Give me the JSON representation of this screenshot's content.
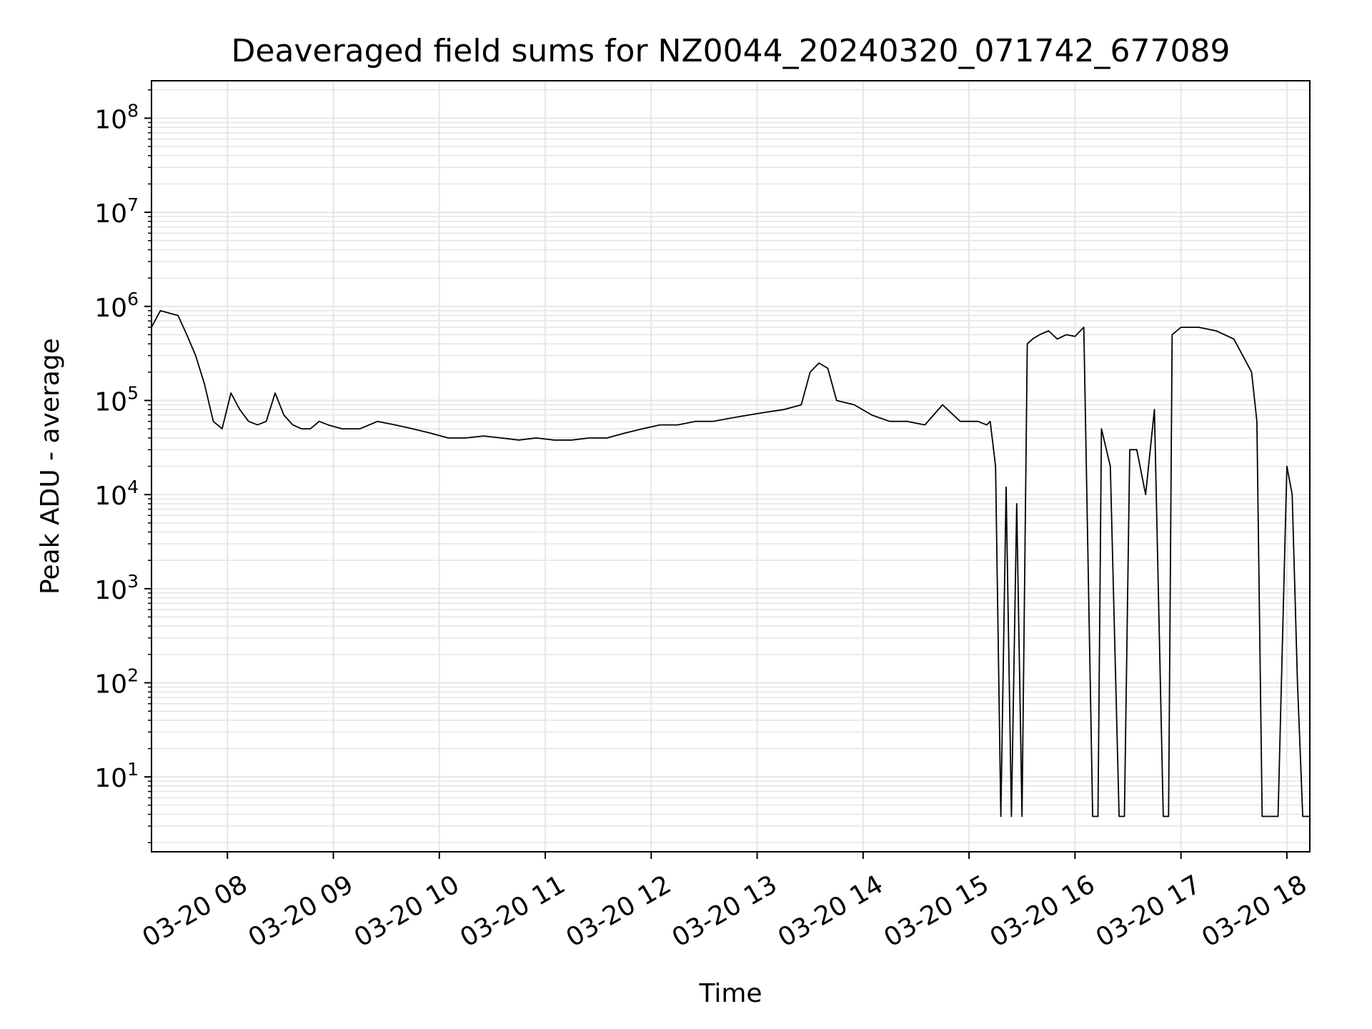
{
  "chart_data": {
    "type": "line",
    "title": "Deaveraged field sums for NZ0044_20240320_071742_677089",
    "xlabel": "Time",
    "ylabel": "Peak ADU - average",
    "x_scale": "time",
    "y_scale": "log",
    "xlim": [
      "2024-03-20T07:17",
      "2024-03-20T18:13"
    ],
    "ylim": [
      1.6,
      250000000
    ],
    "grid": true,
    "line_color": "#000000",
    "grid_color": "#e6e6e6",
    "x_ticks": [
      {
        "value": "2024-03-20T08:00",
        "label": "03-20 08"
      },
      {
        "value": "2024-03-20T09:00",
        "label": "03-20 09"
      },
      {
        "value": "2024-03-20T10:00",
        "label": "03-20 10"
      },
      {
        "value": "2024-03-20T11:00",
        "label": "03-20 11"
      },
      {
        "value": "2024-03-20T12:00",
        "label": "03-20 12"
      },
      {
        "value": "2024-03-20T13:00",
        "label": "03-20 13"
      },
      {
        "value": "2024-03-20T14:00",
        "label": "03-20 14"
      },
      {
        "value": "2024-03-20T15:00",
        "label": "03-20 15"
      },
      {
        "value": "2024-03-20T16:00",
        "label": "03-20 16"
      },
      {
        "value": "2024-03-20T17:00",
        "label": "03-20 17"
      },
      {
        "value": "2024-03-20T18:00",
        "label": "03-20 18"
      }
    ],
    "y_ticks": [
      {
        "value": 10,
        "base": "10",
        "exp": "1"
      },
      {
        "value": 100,
        "base": "10",
        "exp": "2"
      },
      {
        "value": 1000,
        "base": "10",
        "exp": "3"
      },
      {
        "value": 10000,
        "base": "10",
        "exp": "4"
      },
      {
        "value": 100000,
        "base": "10",
        "exp": "5"
      },
      {
        "value": 1000000,
        "base": "10",
        "exp": "6"
      },
      {
        "value": 10000000,
        "base": "10",
        "exp": "7"
      },
      {
        "value": 100000000,
        "base": "10",
        "exp": "8"
      }
    ],
    "series": [
      {
        "x": [
          "2024-03-20T07:17",
          "2024-03-20T07:22",
          "2024-03-20T07:27",
          "2024-03-20T07:32",
          "2024-03-20T07:37",
          "2024-03-20T07:42",
          "2024-03-20T07:47",
          "2024-03-20T07:52",
          "2024-03-20T07:57",
          "2024-03-20T08:02",
          "2024-03-20T08:07",
          "2024-03-20T08:12",
          "2024-03-20T08:17",
          "2024-03-20T08:22",
          "2024-03-20T08:27",
          "2024-03-20T08:32",
          "2024-03-20T08:37",
          "2024-03-20T08:42",
          "2024-03-20T08:47",
          "2024-03-20T08:52",
          "2024-03-20T08:57",
          "2024-03-20T09:05",
          "2024-03-20T09:15",
          "2024-03-20T09:25",
          "2024-03-20T09:35",
          "2024-03-20T09:45",
          "2024-03-20T09:55",
          "2024-03-20T10:05",
          "2024-03-20T10:15",
          "2024-03-20T10:25",
          "2024-03-20T10:35",
          "2024-03-20T10:45",
          "2024-03-20T10:55",
          "2024-03-20T11:05",
          "2024-03-20T11:15",
          "2024-03-20T11:25",
          "2024-03-20T11:35",
          "2024-03-20T11:45",
          "2024-03-20T11:55",
          "2024-03-20T12:05",
          "2024-03-20T12:15",
          "2024-03-20T12:25",
          "2024-03-20T12:35",
          "2024-03-20T12:45",
          "2024-03-20T12:55",
          "2024-03-20T13:05",
          "2024-03-20T13:15",
          "2024-03-20T13:25",
          "2024-03-20T13:30",
          "2024-03-20T13:35",
          "2024-03-20T13:40",
          "2024-03-20T13:45",
          "2024-03-20T13:55",
          "2024-03-20T14:05",
          "2024-03-20T14:15",
          "2024-03-20T14:25",
          "2024-03-20T14:35",
          "2024-03-20T14:45",
          "2024-03-20T14:55",
          "2024-03-20T15:05",
          "2024-03-20T15:10",
          "2024-03-20T15:12",
          "2024-03-20T15:15",
          "2024-03-20T15:18",
          "2024-03-20T15:21",
          "2024-03-20T15:24",
          "2024-03-20T15:27",
          "2024-03-20T15:30",
          "2024-03-20T15:33",
          "2024-03-20T15:36",
          "2024-03-20T15:40",
          "2024-03-20T15:45",
          "2024-03-20T15:50",
          "2024-03-20T15:55",
          "2024-03-20T16:00",
          "2024-03-20T16:05",
          "2024-03-20T16:10",
          "2024-03-20T16:13",
          "2024-03-20T16:15",
          "2024-03-20T16:20",
          "2024-03-20T16:25",
          "2024-03-20T16:28",
          "2024-03-20T16:31",
          "2024-03-20T16:35",
          "2024-03-20T16:40",
          "2024-03-20T16:45",
          "2024-03-20T16:50",
          "2024-03-20T16:53",
          "2024-03-20T16:55",
          "2024-03-20T17:00",
          "2024-03-20T17:10",
          "2024-03-20T17:20",
          "2024-03-20T17:30",
          "2024-03-20T17:35",
          "2024-03-20T17:40",
          "2024-03-20T17:43",
          "2024-03-20T17:46",
          "2024-03-20T17:50",
          "2024-03-20T17:55",
          "2024-03-20T18:00",
          "2024-03-20T18:03",
          "2024-03-20T18:06",
          "2024-03-20T18:09",
          "2024-03-20T18:13"
        ],
        "y": [
          600000,
          900000,
          850000,
          800000,
          500000,
          300000,
          150000,
          60000,
          50000,
          120000,
          80000,
          60000,
          55000,
          60000,
          120000,
          70000,
          55000,
          50000,
          50000,
          60000,
          55000,
          50000,
          50000,
          60000,
          55000,
          50000,
          45000,
          40000,
          40000,
          42000,
          40000,
          38000,
          40000,
          38000,
          38000,
          40000,
          40000,
          45000,
          50000,
          55000,
          55000,
          60000,
          60000,
          65000,
          70000,
          75000,
          80000,
          90000,
          200000,
          250000,
          220000,
          100000,
          90000,
          70000,
          60000,
          60000,
          55000,
          90000,
          60000,
          60000,
          55000,
          60000,
          20000,
          3.8,
          12000,
          3.8,
          8000,
          3.8,
          400000,
          450000,
          500000,
          550000,
          450000,
          500000,
          480000,
          600000,
          3.8,
          3.8,
          50000,
          20000,
          3.8,
          3.8,
          30000,
          30000,
          10000,
          80000,
          3.8,
          3.8,
          500000,
          600000,
          600000,
          550000,
          450000,
          300000,
          200000,
          60000,
          3.8,
          3.8,
          3.8,
          20000,
          10000,
          100,
          3.8,
          3.8
        ]
      }
    ]
  }
}
